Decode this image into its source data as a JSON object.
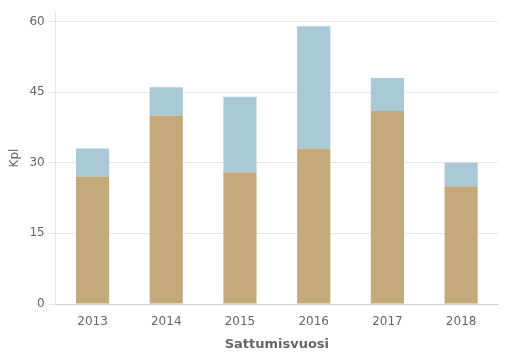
{
  "chart_data": {
    "type": "bar",
    "stacked": true,
    "categories": [
      "2013",
      "2014",
      "2015",
      "2016",
      "2017",
      "2018"
    ],
    "series": [
      {
        "color": "#C4A97A",
        "values": [
          27,
          40,
          28,
          33,
          41,
          25
        ]
      },
      {
        "color": "#A8C9D5",
        "values": [
          6,
          6,
          16,
          26,
          7,
          5
        ]
      }
    ],
    "xlabel": "Sattumisvuosi",
    "ylabel": "Kpl",
    "ylim": [
      0,
      62
    ],
    "yticks": [
      0,
      15,
      30,
      45,
      60
    ],
    "grid": true
  }
}
